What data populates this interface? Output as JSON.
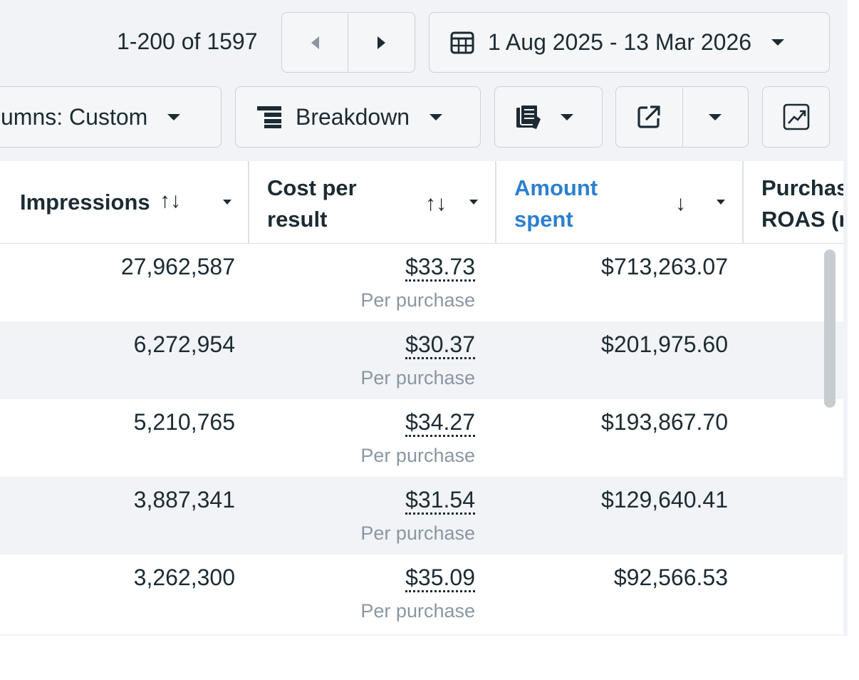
{
  "pagination": {
    "range_text": "1-200 of 1597"
  },
  "date_range": {
    "label": "1 Aug 2025 - 13 Mar 2026"
  },
  "toolbar": {
    "columns_label": "umns: Custom",
    "breakdown_label": "Breakdown"
  },
  "table": {
    "headers": {
      "impressions": "Impressions",
      "impressions_sort": "↑↓",
      "cost_per_result_line1": "Cost per",
      "cost_per_result_line2": "result",
      "cost_sort": "↑↓",
      "amount_spent_line1": "Amount",
      "amount_spent_line2": "spent",
      "amount_sort": "↓",
      "roas_line1": "Purchas",
      "roas_line2": "ROAS (r"
    },
    "rows": [
      {
        "impressions": "27,962,587",
        "cost_per_result": "$33.73",
        "cost_sub": "Per purchase",
        "amount_spent": "$713,263.07"
      },
      {
        "impressions": "6,272,954",
        "cost_per_result": "$30.37",
        "cost_sub": "Per purchase",
        "amount_spent": "$201,975.60"
      },
      {
        "impressions": "5,210,765",
        "cost_per_result": "$34.27",
        "cost_sub": "Per purchase",
        "amount_spent": "$193,867.70"
      },
      {
        "impressions": "3,887,341",
        "cost_per_result": "$31.54",
        "cost_sub": "Per purchase",
        "amount_spent": "$129,640.41"
      },
      {
        "impressions": "3,262,300",
        "cost_per_result": "$35.09",
        "cost_sub": "Per purchase",
        "amount_spent": "$92,566.53"
      }
    ]
  },
  "colors": {
    "accent_link": "#2d7fd0",
    "text_primary": "#1c2b33",
    "text_secondary": "#8a97a3",
    "row_alt": "#f1f3f6"
  },
  "icons": [
    "caret-left-icon",
    "caret-right-icon",
    "calendar-icon",
    "chevron-down-icon",
    "breakdown-icon",
    "reports-icon",
    "export-icon",
    "chart-icon",
    "sort-icon"
  ]
}
